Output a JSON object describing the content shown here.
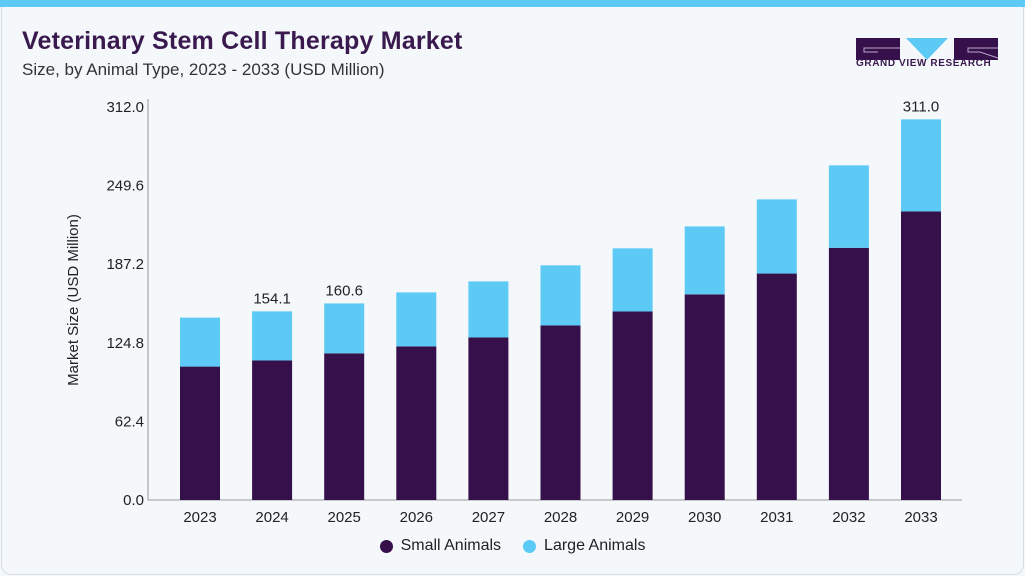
{
  "header": {
    "title": "Veterinary Stem Cell Therapy Market",
    "subtitle": "Size, by Animal Type, 2023 - 2033 (USD Million)",
    "logo_text": "GRAND VIEW RESEARCH"
  },
  "colors": {
    "small_animals": "#36104a",
    "large_animals": "#5ccaf5",
    "accent_bar": "#5ccaf5"
  },
  "chart_data": {
    "type": "bar",
    "stacked": true,
    "title": "Veterinary Stem Cell Therapy Market",
    "ylabel": "Market Size (USD Million)",
    "xlabel": "",
    "ylim": [
      0,
      312
    ],
    "yticks": [
      "0.0",
      "62.4",
      "124.8",
      "187.2",
      "249.6",
      "312.0"
    ],
    "grid": false,
    "legend": "bottom",
    "categories": [
      "2023",
      "2024",
      "2025",
      "2026",
      "2027",
      "2028",
      "2029",
      "2030",
      "2031",
      "2032",
      "2033"
    ],
    "series": [
      {
        "name": "Small Animals",
        "values": [
          109,
          114,
          119.8,
          125.5,
          132.8,
          142.6,
          154,
          168,
          185,
          206,
          235.7
        ]
      },
      {
        "name": "Large Animals",
        "values": [
          40,
          40.1,
          40.8,
          44.1,
          45.8,
          49.1,
          51.6,
          55.5,
          60.6,
          67.4,
          75.3
        ]
      }
    ],
    "data_labels": {
      "2024": "154.1",
      "2025": "160.6",
      "2033": "311.0"
    }
  }
}
